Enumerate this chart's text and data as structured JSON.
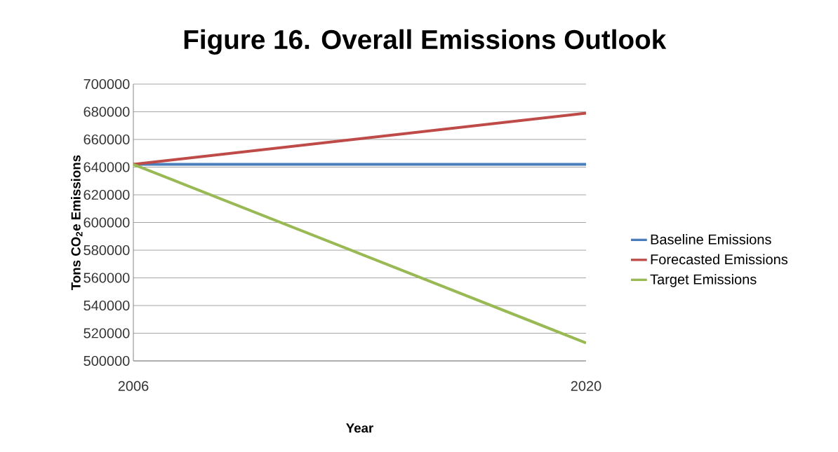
{
  "chart_data": {
    "type": "line",
    "title": "Figure 16. Overall Emissions Outlook",
    "xlabel": "Year",
    "ylabel": "Tons CO$_{2}$e Emissions",
    "x": [
      2006,
      2020
    ],
    "xlim": [
      2006,
      2020
    ],
    "xticks": [
      2006,
      2020
    ],
    "series": [
      {
        "name": "Baseline Emissions",
        "color": "#4a7ebb",
        "values": [
          642000,
          642000
        ]
      },
      {
        "name": "Forecasted Emissions",
        "color": "#be4b48",
        "values": [
          642000,
          679000
        ]
      },
      {
        "name": "Target Emissions",
        "color": "#98b954",
        "values": [
          642000,
          513000
        ]
      }
    ],
    "ylim": [
      500000,
      700000
    ],
    "yticks": [
      500000,
      520000,
      540000,
      560000,
      580000,
      600000,
      620000,
      640000,
      660000,
      680000,
      700000
    ],
    "grid": "y",
    "legend": "right",
    "marker": "none",
    "line_style": "solid"
  }
}
